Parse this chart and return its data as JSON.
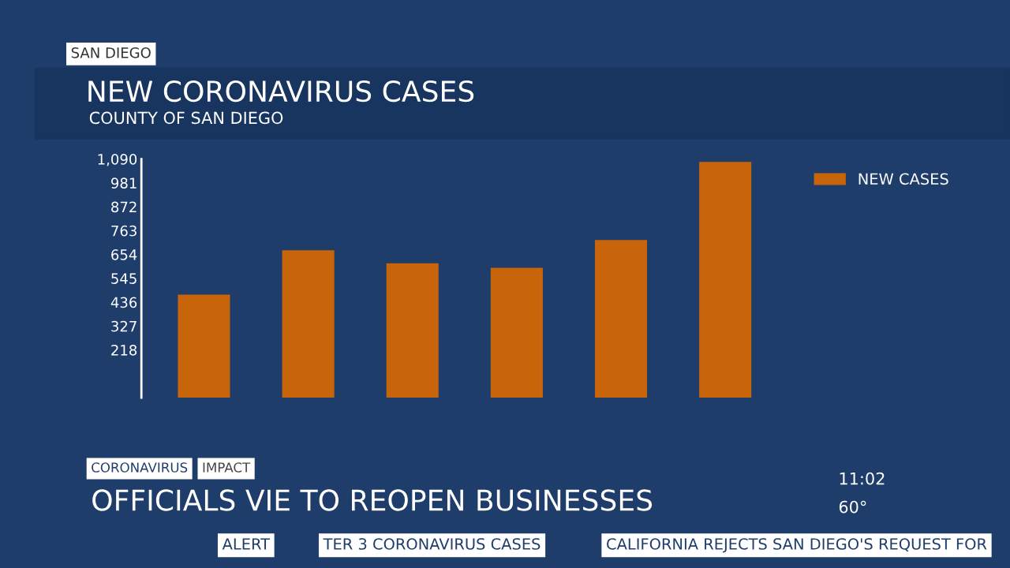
{
  "chart_data": {
    "type": "bar",
    "title": "NEW CORONAVIRUS CASES",
    "subtitle": "COUNTY OF SAN DIEGO",
    "categories": [
      null,
      null,
      null,
      null,
      null,
      null
    ],
    "series": [
      {
        "name": "NEW CASES",
        "color": "#c8650a",
        "values": [
          470,
          673,
          614,
          593,
          720,
          1077
        ]
      }
    ],
    "ylim": [
      0,
      1090
    ],
    "yticks": [
      218,
      327,
      436,
      545,
      654,
      763,
      872,
      981,
      {
        "value": 1090,
        "label": "1,090"
      }
    ],
    "tick_labels": "y",
    "grid": false,
    "legend": "top right",
    "annotations": [
      "SAN DIEGO",
      "CORONAVIRUS",
      "IMPACT",
      "OFFICIALS VIE TO REOPEN BUSINESSES",
      "11:02",
      "60°",
      "ALERT",
      "TER 3 CORONAVIRUS CASES",
      "CALIFORNIA REJECTS SAN DIEGO'S REQUEST FOR"
    ]
  }
}
